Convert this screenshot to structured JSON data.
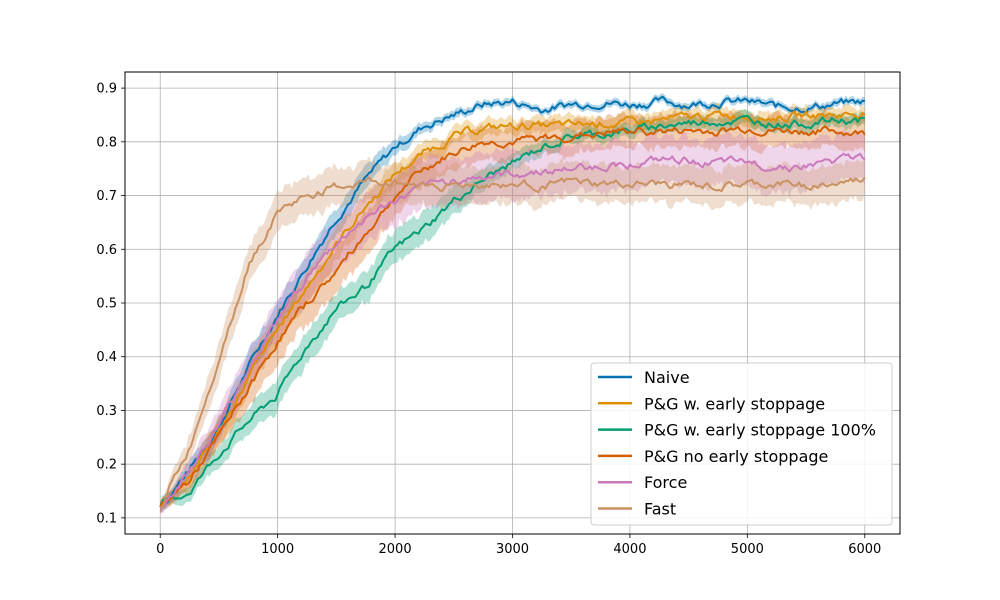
{
  "chart_data": {
    "type": "line",
    "title": "",
    "xlabel": "",
    "ylabel": "",
    "xlim": [
      -300,
      6300
    ],
    "ylim": [
      0.07,
      0.93
    ],
    "grid": true,
    "legend_position": "lower-right",
    "x_ticks": [
      0,
      1000,
      2000,
      3000,
      4000,
      5000,
      6000
    ],
    "x_tick_labels": [
      "0",
      "1000",
      "2000",
      "3000",
      "4000",
      "5000",
      "6000"
    ],
    "y_ticks": [
      0.1,
      0.2,
      0.3,
      0.4,
      0.5,
      0.6,
      0.7,
      0.8,
      0.9
    ],
    "y_tick_labels": [
      "0.1",
      "0.2",
      "0.3",
      "0.4",
      "0.5",
      "0.6",
      "0.7",
      "0.8",
      "0.9"
    ],
    "x": [
      0,
      250,
      500,
      750,
      1000,
      1250,
      1500,
      1750,
      2000,
      2250,
      2500,
      2750,
      3000,
      3250,
      3500,
      3750,
      4000,
      4250,
      4500,
      4750,
      5000,
      5250,
      5500,
      5750,
      6000
    ],
    "series": [
      {
        "name": "Naive",
        "color": "#0173b2",
        "values": [
          0.12,
          0.19,
          0.27,
          0.38,
          0.48,
          0.57,
          0.66,
          0.73,
          0.79,
          0.83,
          0.85,
          0.87,
          0.875,
          0.86,
          0.87,
          0.875,
          0.87,
          0.875,
          0.87,
          0.875,
          0.875,
          0.865,
          0.865,
          0.87,
          0.875
        ],
        "band": [
          0.01,
          0.015,
          0.02,
          0.025,
          0.025,
          0.025,
          0.025,
          0.02,
          0.015,
          0.01,
          0.008,
          0.007,
          0.007,
          0.007,
          0.007,
          0.007,
          0.007,
          0.007,
          0.007,
          0.007,
          0.007,
          0.007,
          0.007,
          0.007,
          0.007
        ]
      },
      {
        "name": "P&G w. early stoppage",
        "color": "#de8f05",
        "values": [
          0.12,
          0.18,
          0.26,
          0.36,
          0.45,
          0.53,
          0.61,
          0.68,
          0.74,
          0.78,
          0.81,
          0.825,
          0.83,
          0.83,
          0.83,
          0.835,
          0.835,
          0.84,
          0.845,
          0.85,
          0.85,
          0.845,
          0.85,
          0.85,
          0.855
        ],
        "band": [
          0.01,
          0.02,
          0.025,
          0.03,
          0.03,
          0.03,
          0.03,
          0.025,
          0.02,
          0.018,
          0.015,
          0.015,
          0.015,
          0.015,
          0.015,
          0.015,
          0.015,
          0.015,
          0.015,
          0.015,
          0.015,
          0.015,
          0.015,
          0.015,
          0.015
        ]
      },
      {
        "name": "P&G w. early stoppage 100%",
        "color": "#029e73",
        "values": [
          0.12,
          0.15,
          0.22,
          0.28,
          0.33,
          0.42,
          0.49,
          0.53,
          0.6,
          0.64,
          0.69,
          0.73,
          0.76,
          0.79,
          0.81,
          0.815,
          0.82,
          0.83,
          0.835,
          0.84,
          0.84,
          0.835,
          0.835,
          0.84,
          0.84
        ],
        "band": [
          0.01,
          0.015,
          0.02,
          0.025,
          0.03,
          0.03,
          0.03,
          0.03,
          0.03,
          0.03,
          0.025,
          0.02,
          0.015,
          0.013,
          0.012,
          0.012,
          0.012,
          0.012,
          0.012,
          0.012,
          0.012,
          0.012,
          0.012,
          0.012,
          0.012
        ]
      },
      {
        "name": "P&G no early stoppage",
        "color": "#d55e00",
        "values": [
          0.12,
          0.17,
          0.25,
          0.34,
          0.43,
          0.5,
          0.56,
          0.63,
          0.7,
          0.75,
          0.78,
          0.8,
          0.8,
          0.805,
          0.81,
          0.815,
          0.82,
          0.82,
          0.82,
          0.82,
          0.825,
          0.82,
          0.82,
          0.82,
          0.815
        ],
        "band": [
          0.01,
          0.02,
          0.025,
          0.035,
          0.04,
          0.04,
          0.04,
          0.04,
          0.035,
          0.03,
          0.03,
          0.03,
          0.03,
          0.03,
          0.03,
          0.03,
          0.03,
          0.03,
          0.03,
          0.03,
          0.03,
          0.03,
          0.03,
          0.03,
          0.03
        ]
      },
      {
        "name": "Force",
        "color": "#cc78bc",
        "values": [
          0.12,
          0.19,
          0.27,
          0.38,
          0.47,
          0.55,
          0.61,
          0.66,
          0.69,
          0.715,
          0.73,
          0.735,
          0.74,
          0.745,
          0.75,
          0.755,
          0.76,
          0.765,
          0.765,
          0.76,
          0.76,
          0.755,
          0.755,
          0.765,
          0.77
        ],
        "band": [
          0.01,
          0.02,
          0.03,
          0.035,
          0.04,
          0.045,
          0.045,
          0.045,
          0.045,
          0.045,
          0.045,
          0.045,
          0.045,
          0.045,
          0.045,
          0.045,
          0.045,
          0.045,
          0.045,
          0.045,
          0.045,
          0.045,
          0.045,
          0.045,
          0.045
        ]
      },
      {
        "name": "Fast",
        "color": "#ca9161",
        "values": [
          0.12,
          0.23,
          0.4,
          0.57,
          0.67,
          0.7,
          0.715,
          0.725,
          0.725,
          0.72,
          0.72,
          0.72,
          0.72,
          0.72,
          0.725,
          0.72,
          0.72,
          0.72,
          0.72,
          0.715,
          0.72,
          0.72,
          0.72,
          0.72,
          0.73
        ],
        "band": [
          0.01,
          0.025,
          0.035,
          0.035,
          0.035,
          0.035,
          0.035,
          0.035,
          0.035,
          0.035,
          0.035,
          0.035,
          0.035,
          0.035,
          0.035,
          0.035,
          0.035,
          0.035,
          0.035,
          0.035,
          0.035,
          0.035,
          0.035,
          0.035,
          0.035
        ]
      }
    ]
  }
}
